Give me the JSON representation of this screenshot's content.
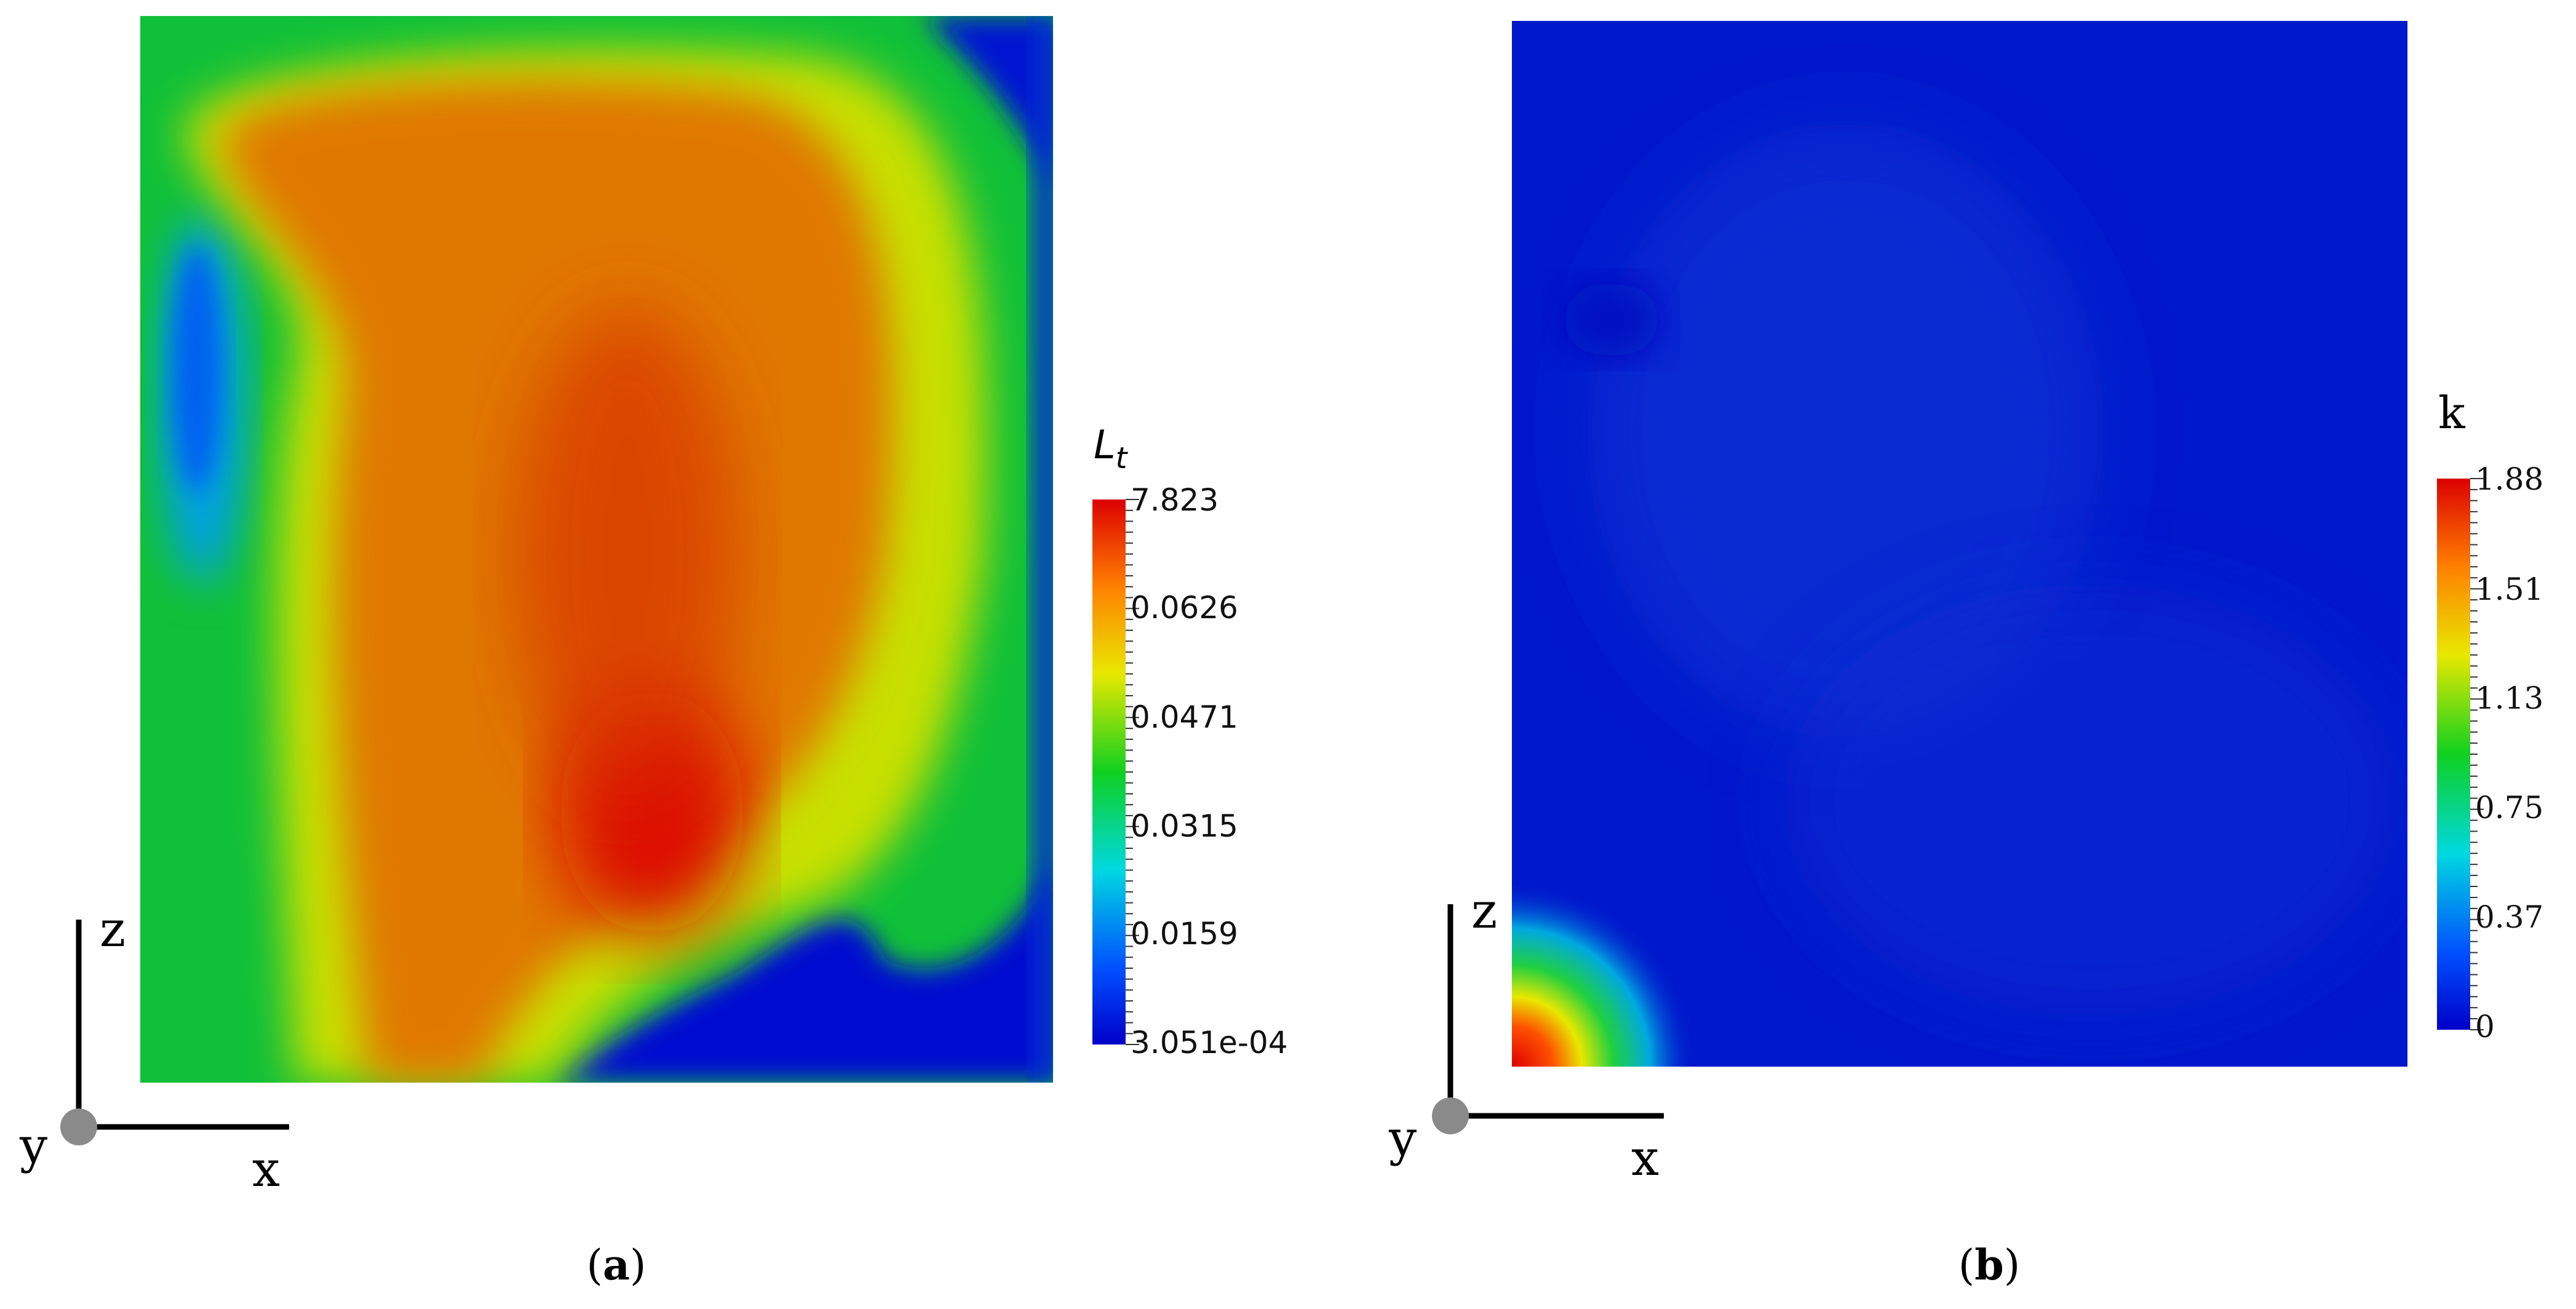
{
  "panels": [
    {
      "id": "a",
      "caption": "(a)",
      "colorbar": {
        "title": "L",
        "title_subscript": "t",
        "ticks": [
          "7.823",
          "0.0626",
          "0.0471",
          "0.0315",
          "0.0159",
          "3.051e-04"
        ]
      },
      "axes": {
        "vertical": "z",
        "horizontal": "x",
        "out_of_plane": "y"
      }
    },
    {
      "id": "b",
      "caption": "(b)",
      "colorbar": {
        "title": "k",
        "ticks": [
          "1.88",
          "1.51",
          "1.13",
          "0.75",
          "0.37",
          "0"
        ]
      },
      "axes": {
        "vertical": "z",
        "horizontal": "x",
        "out_of_plane": "y"
      }
    }
  ],
  "colors": {
    "jet_low": "#0000c8",
    "jet_high": "#dc0000",
    "axis_arrow": "#000000",
    "origin_dot": "#8a8a8a"
  }
}
